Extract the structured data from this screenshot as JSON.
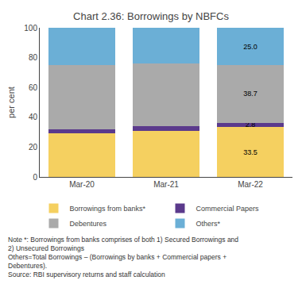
{
  "chart_data": {
    "type": "bar",
    "title": "Chart 2.36: Borrowings by NBFCs",
    "categories": [
      "Mar-20",
      "Mar-21",
      "Mar-22"
    ],
    "series": [
      {
        "name": "Borrowings from banks*",
        "color": "#F5D060",
        "values": [
          29.0,
          31.0,
          33.5
        ],
        "value_labels": [
          null,
          null,
          "33.5"
        ]
      },
      {
        "name": "Commercial Papers",
        "color": "#5B3A8C",
        "values": [
          3.0,
          3.0,
          2.8
        ],
        "value_labels": [
          null,
          null,
          "2.8"
        ]
      },
      {
        "name": "Debentures",
        "color": "#AAAAAA",
        "values": [
          43.0,
          42.0,
          38.7
        ],
        "value_labels": [
          null,
          null,
          "38.7"
        ]
      },
      {
        "name": "Others*",
        "color": "#6BAFD6",
        "values": [
          25.0,
          24.0,
          25.0
        ],
        "value_labels": [
          null,
          null,
          "25.0"
        ]
      }
    ],
    "ylabel": "per cent",
    "ylim": [
      0,
      100
    ],
    "yticks": [
      0,
      20,
      40,
      60,
      80,
      100
    ],
    "stacked": true,
    "data_labels": true,
    "grid": false,
    "legend": "bottom",
    "annotations": [
      "Note *: Borrowings from banks comprises of both 1) Secured Borrowings and",
      "2) Unsecured Borrowings",
      "Others=Total Borrowings – (Borrowings by banks + Commercial papers +",
      "Debentures).",
      "Source: RBI supervisory returns and staff calculation"
    ]
  }
}
